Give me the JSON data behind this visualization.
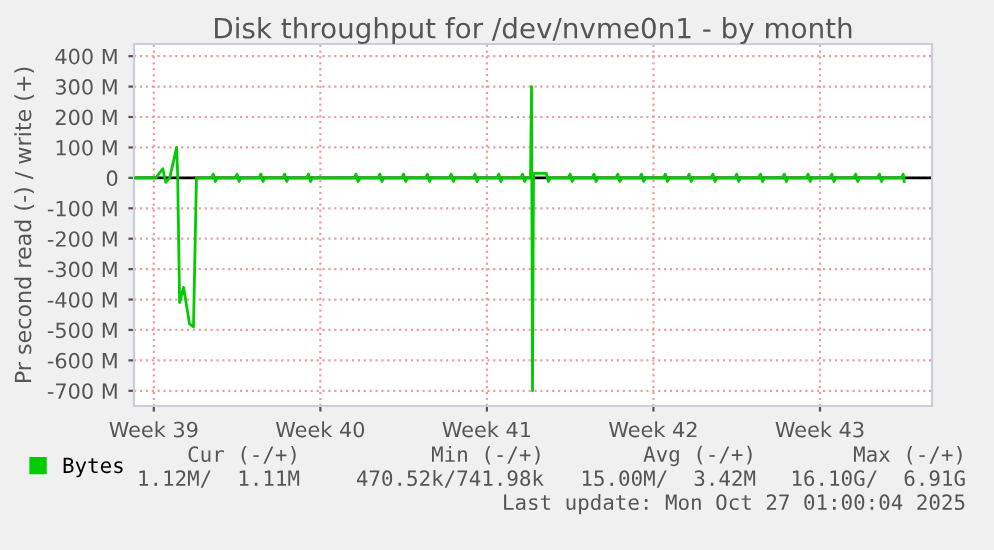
{
  "chart_data": {
    "type": "line",
    "title": "Disk throughput for /dev/nvme0n1 - by month",
    "ylabel": "Pr second read (-) / write (+)",
    "series": [
      {
        "name": "Bytes",
        "color": "#00cc00",
        "x": [
          "2025-09-24T16:00",
          "2025-09-25T14:00",
          "2025-09-25T21:00",
          "2025-09-26T00:00",
          "2025-09-26T04:00",
          "2025-09-26T11:00",
          "2025-09-26T12:00",
          "2025-09-26T14:00",
          "2025-09-26T18:00",
          "2025-09-26T20:00",
          "2025-09-27T00:00",
          "2025-09-27T04:00",
          "2025-09-27T07:00",
          "2025-09-27T22:00",
          "2025-09-28T00:00",
          "2025-09-28T02:00",
          "2025-09-28T04:00",
          "2025-09-28T22:00",
          "2025-09-29T00:00",
          "2025-09-29T02:00",
          "2025-09-29T04:00",
          "2025-09-29T22:00",
          "2025-09-30T00:00",
          "2025-09-30T02:00",
          "2025-09-30T04:00",
          "2025-09-30T22:00",
          "2025-10-01T00:00",
          "2025-10-01T02:00",
          "2025-10-01T04:00",
          "2025-10-01T22:00",
          "2025-10-02T00:00",
          "2025-10-02T02:00",
          "2025-10-02T04:00",
          "2025-10-03T22:00",
          "2025-10-04T00:00",
          "2025-10-04T02:00",
          "2025-10-04T04:00",
          "2025-10-04T22:00",
          "2025-10-05T00:00",
          "2025-10-05T02:00",
          "2025-10-05T04:00",
          "2025-10-05T22:00",
          "2025-10-06T00:00",
          "2025-10-06T02:00",
          "2025-10-06T04:00",
          "2025-10-06T22:00",
          "2025-10-07T00:00",
          "2025-10-07T02:00",
          "2025-10-07T04:00",
          "2025-10-07T22:00",
          "2025-10-08T00:00",
          "2025-10-08T02:00",
          "2025-10-08T04:00",
          "2025-10-08T22:00",
          "2025-10-09T00:00",
          "2025-10-09T02:00",
          "2025-10-09T04:00",
          "2025-10-09T22:00",
          "2025-10-10T00:00",
          "2025-10-10T02:00",
          "2025-10-10T04:00",
          "2025-10-10T22:00",
          "2025-10-11T00:00",
          "2025-10-11T02:00",
          "2025-10-11T04:00",
          "2025-10-11T08:00",
          "2025-10-11T09:00",
          "2025-10-11T10:00",
          "2025-10-11T11:00",
          "2025-10-12T00:00",
          "2025-10-12T02:00",
          "2025-10-12T04:00",
          "2025-10-12T22:00",
          "2025-10-13T00:00",
          "2025-10-13T02:00",
          "2025-10-13T04:00",
          "2025-10-13T22:00",
          "2025-10-14T00:00",
          "2025-10-14T02:00",
          "2025-10-14T04:00",
          "2025-10-14T22:00",
          "2025-10-15T00:00",
          "2025-10-15T02:00",
          "2025-10-15T04:00",
          "2025-10-15T22:00",
          "2025-10-16T00:00",
          "2025-10-16T02:00",
          "2025-10-16T04:00",
          "2025-10-16T22:00",
          "2025-10-17T00:00",
          "2025-10-17T02:00",
          "2025-10-17T04:00",
          "2025-10-17T22:00",
          "2025-10-18T00:00",
          "2025-10-18T02:00",
          "2025-10-18T04:00",
          "2025-10-18T22:00",
          "2025-10-19T00:00",
          "2025-10-19T02:00",
          "2025-10-19T04:00",
          "2025-10-19T22:00",
          "2025-10-20T00:00",
          "2025-10-20T02:00",
          "2025-10-20T04:00",
          "2025-10-20T22:00",
          "2025-10-21T00:00",
          "2025-10-21T02:00",
          "2025-10-21T04:00",
          "2025-10-21T22:00",
          "2025-10-22T00:00",
          "2025-10-22T02:00",
          "2025-10-22T04:00",
          "2025-10-22T22:00",
          "2025-10-23T00:00",
          "2025-10-23T02:00",
          "2025-10-23T04:00",
          "2025-10-23T22:00",
          "2025-10-24T00:00",
          "2025-10-24T02:00",
          "2025-10-24T04:00",
          "2025-10-24T22:00",
          "2025-10-25T00:00",
          "2025-10-25T02:00",
          "2025-10-25T04:00",
          "2025-10-25T22:00",
          "2025-10-26T00:00",
          "2025-10-26T02:00",
          "2025-10-26T04:00",
          "2025-10-26T22:00",
          "2025-10-27T00:00",
          "2025-10-27T01:00"
        ],
        "values": [
          0,
          0,
          30,
          -15,
          0,
          100,
          15,
          -410,
          -360,
          -400,
          -480,
          -490,
          0,
          0,
          12,
          -12,
          0,
          0,
          12,
          -12,
          0,
          0,
          12,
          -12,
          0,
          0,
          12,
          -12,
          0,
          0,
          12,
          -12,
          0,
          0,
          12,
          -12,
          0,
          0,
          12,
          -12,
          0,
          0,
          12,
          -12,
          0,
          0,
          12,
          -12,
          0,
          0,
          12,
          -12,
          0,
          0,
          12,
          -12,
          0,
          0,
          12,
          -12,
          0,
          0,
          12,
          -12,
          0,
          0,
          300,
          -700,
          15,
          15,
          -12,
          0,
          0,
          12,
          -12,
          0,
          0,
          12,
          -12,
          0,
          0,
          12,
          -12,
          0,
          0,
          12,
          -12,
          0,
          0,
          12,
          -12,
          0,
          0,
          12,
          -12,
          0,
          0,
          12,
          -12,
          0,
          0,
          12,
          -12,
          0,
          0,
          12,
          -12,
          0,
          0,
          12,
          -12,
          0,
          0,
          12,
          -12,
          0,
          0,
          12,
          -12,
          0,
          0,
          12,
          -12,
          0,
          0,
          12,
          -12,
          0,
          0,
          12,
          -12
        ]
      }
    ],
    "xlim": [
      "2025-09-24T16:00",
      "2025-10-28T05:00"
    ],
    "xticks": [
      {
        "value": "2025-09-25T12:00",
        "label": "Week 39"
      },
      {
        "value": "2025-10-02T12:00",
        "label": "Week 40"
      },
      {
        "value": "2025-10-09T12:00",
        "label": "Week 41"
      },
      {
        "value": "2025-10-16T12:00",
        "label": "Week 42"
      },
      {
        "value": "2025-10-23T12:00",
        "label": "Week 43"
      }
    ],
    "ylim": [
      -750,
      440
    ],
    "yticks": [
      {
        "value": -700,
        "label": "-700 M"
      },
      {
        "value": -600,
        "label": "-600 M"
      },
      {
        "value": -500,
        "label": "-500 M"
      },
      {
        "value": -400,
        "label": "-400 M"
      },
      {
        "value": -300,
        "label": "-300 M"
      },
      {
        "value": -200,
        "label": "-200 M"
      },
      {
        "value": -100,
        "label": "-100 M"
      },
      0,
      {
        "value": 100,
        "label": "100 M"
      },
      {
        "value": 200,
        "label": "200 M"
      },
      {
        "value": 300,
        "label": "300 M"
      },
      {
        "value": 400,
        "label": "400 M"
      }
    ],
    "ref_lines": [
      {
        "axis": "y",
        "value": 0,
        "color": "#000000"
      }
    ],
    "grid": true,
    "legend": "bottom",
    "line_style": "solid",
    "marker": "none",
    "annotations": [
      "Cur (-/+)",
      "Min (-/+)",
      "Avg (-/+)",
      "Max (-/+)",
      "1.12M/  1.11M",
      "470.52k/741.98k",
      "15.00M/  3.42M",
      "16.10G/  6.91G",
      "Last update: Mon Oct 27 01:00:04 2025"
    ]
  }
}
